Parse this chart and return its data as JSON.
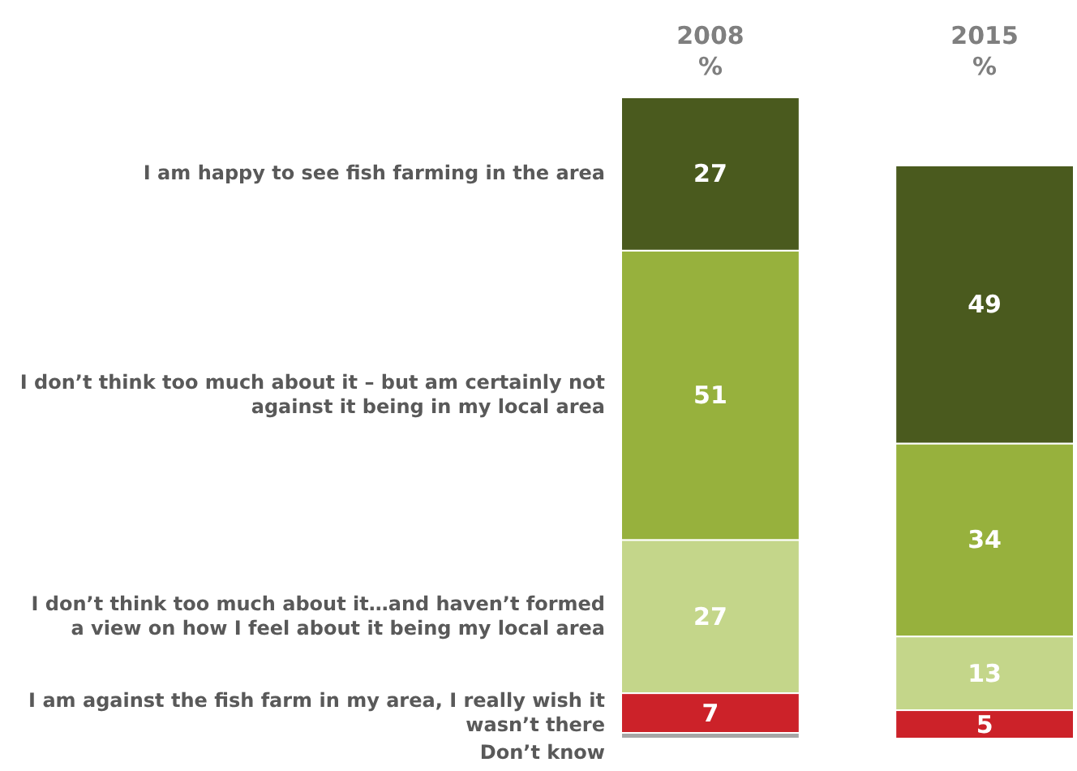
{
  "chart_data": {
    "type": "bar",
    "stacked": true,
    "categories": [
      "2008\n%",
      "2015\n%"
    ],
    "ylim": [
      0,
      113
    ],
    "tick_labels": "x",
    "series": [
      {
        "name": "Don’t know",
        "color": "#a6a6a6",
        "values": [
          1,
          null
        ],
        "value_labels": [
          null,
          null
        ]
      },
      {
        "name": "I am against the fish farm in my area, I really wish it wasn’t there",
        "color": "#cc2229",
        "values": [
          7,
          5
        ],
        "value_labels": [
          "7",
          "5"
        ]
      },
      {
        "name": "I don’t think too much about it…and haven’t formed a view on how I feel about it being my local area",
        "color": "#c4d68a",
        "values": [
          27,
          13
        ],
        "value_labels": [
          "27",
          "13"
        ]
      },
      {
        "name": "I don’t think too much about it – but am certainly not against it being in my  local area",
        "color": "#97b13d",
        "values": [
          51,
          34
        ],
        "value_labels": [
          "51",
          "34"
        ]
      },
      {
        "name": "I am happy to see fish farming in the area",
        "color": "#4a5a1e",
        "values": [
          27,
          49
        ],
        "value_labels": [
          "27",
          "49"
        ]
      }
    ]
  }
}
